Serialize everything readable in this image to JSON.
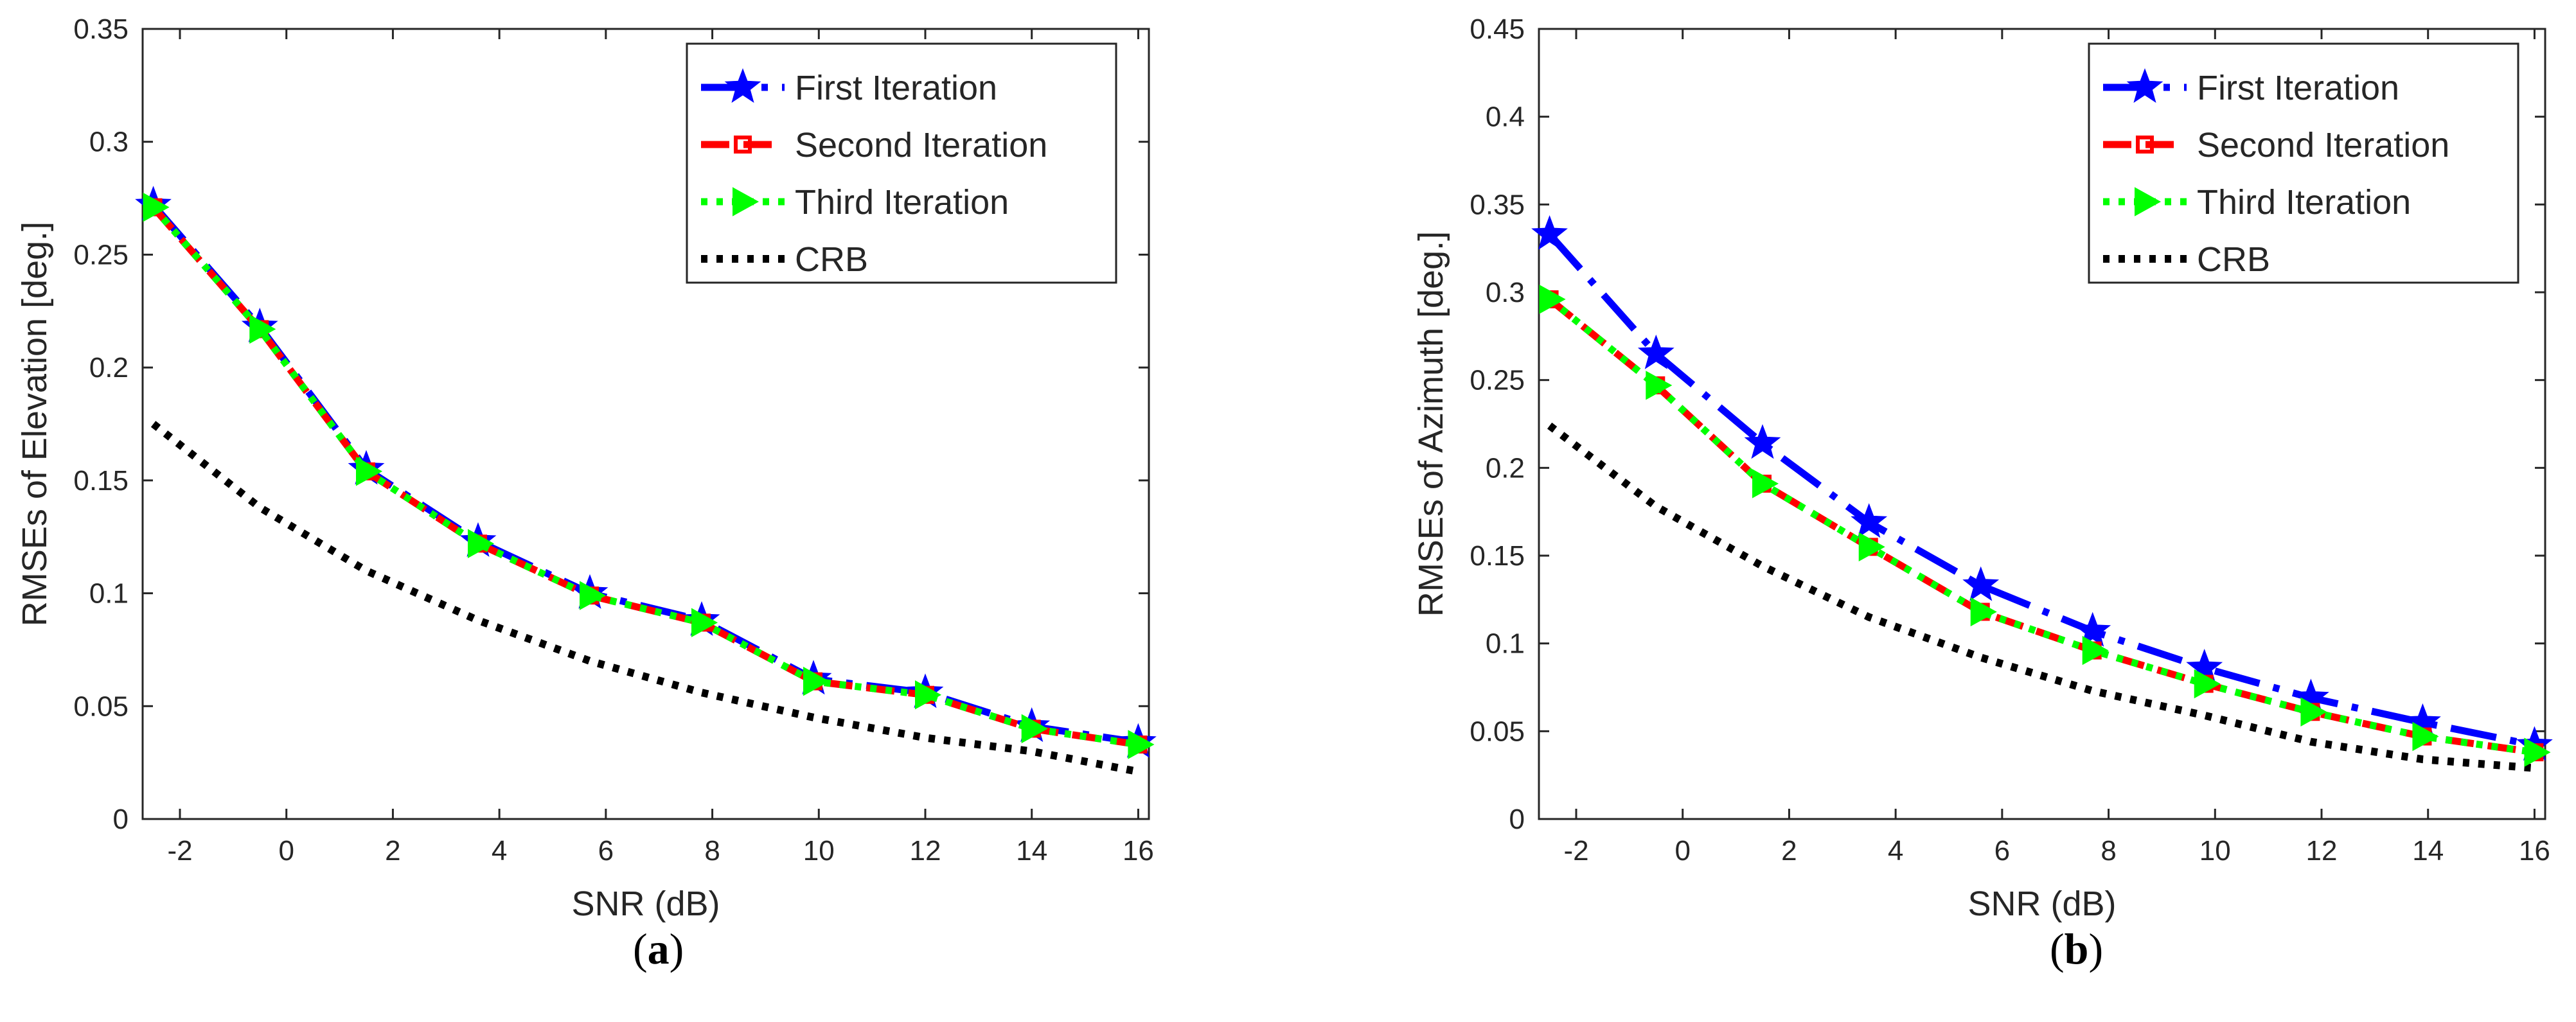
{
  "chart_data": [
    {
      "type": "line",
      "panel_label": "a",
      "title": "",
      "xlabel": "SNR (dB)",
      "ylabel": "RMSEs of Elevation [deg.]",
      "xlim": [
        -2.7,
        16.2
      ],
      "ylim": [
        0,
        0.35
      ],
      "xticks": [
        -2,
        0,
        2,
        4,
        6,
        8,
        10,
        12,
        14,
        16
      ],
      "xtick_labels": [
        "-2",
        "0",
        "2",
        "4",
        "6",
        "8",
        "10",
        "12",
        "14",
        "16"
      ],
      "yticks": [
        0,
        0.05,
        0.1,
        0.15,
        0.2,
        0.25,
        0.3,
        0.35
      ],
      "ytick_labels": [
        "0",
        "0.05",
        "0.1",
        "0.15",
        "0.2",
        "0.25",
        "0.3",
        "0.35"
      ],
      "grid": false,
      "legend_position": "top-right",
      "x": [
        -2.5,
        -0.5,
        1.5,
        3.6,
        5.7,
        7.8,
        9.9,
        12.0,
        14.0,
        16.0
      ],
      "series": [
        {
          "name": "First Iteration",
          "color": "#0000ff",
          "marker": "star",
          "line": "dashdot",
          "values": [
            0.272,
            0.218,
            0.155,
            0.123,
            0.1,
            0.088,
            0.062,
            0.056,
            0.041,
            0.034
          ]
        },
        {
          "name": "Second Iteration",
          "color": "#ff0000",
          "marker": "square",
          "line": "dashed",
          "values": [
            0.271,
            0.217,
            0.154,
            0.122,
            0.099,
            0.087,
            0.061,
            0.055,
            0.04,
            0.033
          ]
        },
        {
          "name": "Third Iteration",
          "color": "#00ff00",
          "marker": "triangle-right",
          "line": "dotted",
          "values": [
            0.271,
            0.217,
            0.154,
            0.122,
            0.099,
            0.087,
            0.061,
            0.055,
            0.04,
            0.033
          ]
        },
        {
          "name": "CRB",
          "color": "#000000",
          "marker": "none",
          "line": "dotted",
          "values": [
            0.175,
            0.138,
            0.11,
            0.088,
            0.07,
            0.056,
            0.045,
            0.036,
            0.03,
            0.021
          ]
        }
      ]
    },
    {
      "type": "line",
      "panel_label": "b",
      "title": "",
      "xlabel": "SNR (dB)",
      "ylabel": "RMSEs of Azimuth [deg.]",
      "xlim": [
        -2.7,
        16.2
      ],
      "ylim": [
        0,
        0.45
      ],
      "xticks": [
        -2,
        0,
        2,
        4,
        6,
        8,
        10,
        12,
        14,
        16
      ],
      "xtick_labels": [
        "-2",
        "0",
        "2",
        "4",
        "6",
        "8",
        "10",
        "12",
        "14",
        "16"
      ],
      "yticks": [
        0,
        0.05,
        0.1,
        0.15,
        0.2,
        0.25,
        0.3,
        0.35,
        0.4,
        0.45
      ],
      "ytick_labels": [
        "0",
        "0.05",
        "0.1",
        "0.15",
        "0.2",
        "0.25",
        "0.3",
        "0.35",
        "0.4",
        "0.45"
      ],
      "grid": false,
      "legend_position": "top-right",
      "x": [
        -2.5,
        -0.5,
        1.5,
        3.5,
        5.6,
        7.7,
        9.8,
        11.8,
        13.9,
        16.0
      ],
      "series": [
        {
          "name": "First Iteration",
          "color": "#0000ff",
          "marker": "star",
          "line": "dashdot",
          "values": [
            0.333,
            0.265,
            0.214,
            0.169,
            0.133,
            0.107,
            0.086,
            0.069,
            0.055,
            0.042
          ]
        },
        {
          "name": "Second Iteration",
          "color": "#ff0000",
          "marker": "square",
          "line": "dashed",
          "values": [
            0.296,
            0.247,
            0.191,
            0.155,
            0.118,
            0.096,
            0.077,
            0.061,
            0.047,
            0.038
          ]
        },
        {
          "name": "Third Iteration",
          "color": "#00ff00",
          "marker": "triangle-right",
          "line": "dotted",
          "values": [
            0.296,
            0.247,
            0.191,
            0.155,
            0.118,
            0.096,
            0.077,
            0.061,
            0.047,
            0.038
          ]
        },
        {
          "name": "CRB",
          "color": "#000000",
          "marker": "none",
          "line": "dotted",
          "values": [
            0.224,
            0.178,
            0.144,
            0.115,
            0.092,
            0.073,
            0.059,
            0.044,
            0.034,
            0.029
          ]
        }
      ]
    }
  ]
}
